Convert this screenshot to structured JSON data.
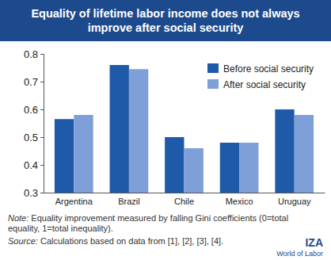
{
  "chart_data": {
    "type": "bar",
    "title": "Equality of lifetime labor income does not always improve after social security",
    "categories": [
      "Argentina",
      "Brazil",
      "Chile",
      "Mexico",
      "Uruguay"
    ],
    "series": [
      {
        "name": "Before social security",
        "color": "#1f5aa8",
        "values": [
          0.565,
          0.76,
          0.5,
          0.48,
          0.6
        ]
      },
      {
        "name": "After social security",
        "color": "#7e9fd8",
        "values": [
          0.58,
          0.745,
          0.46,
          0.48,
          0.58
        ]
      }
    ],
    "ylim": [
      0.3,
      0.8
    ],
    "yticks": [
      0.3,
      0.4,
      0.5,
      0.6,
      0.7,
      0.8
    ],
    "grid": false,
    "legend": "upper right",
    "note": "Note: Equality improvement measured by falling Gini coefficients (0=total equality, 1=total inequality).",
    "source": "Source: Calculations based on data from [1], [2], [3], [4].",
    "logo": {
      "name": "IZA",
      "tagline": "World of Labor"
    }
  }
}
